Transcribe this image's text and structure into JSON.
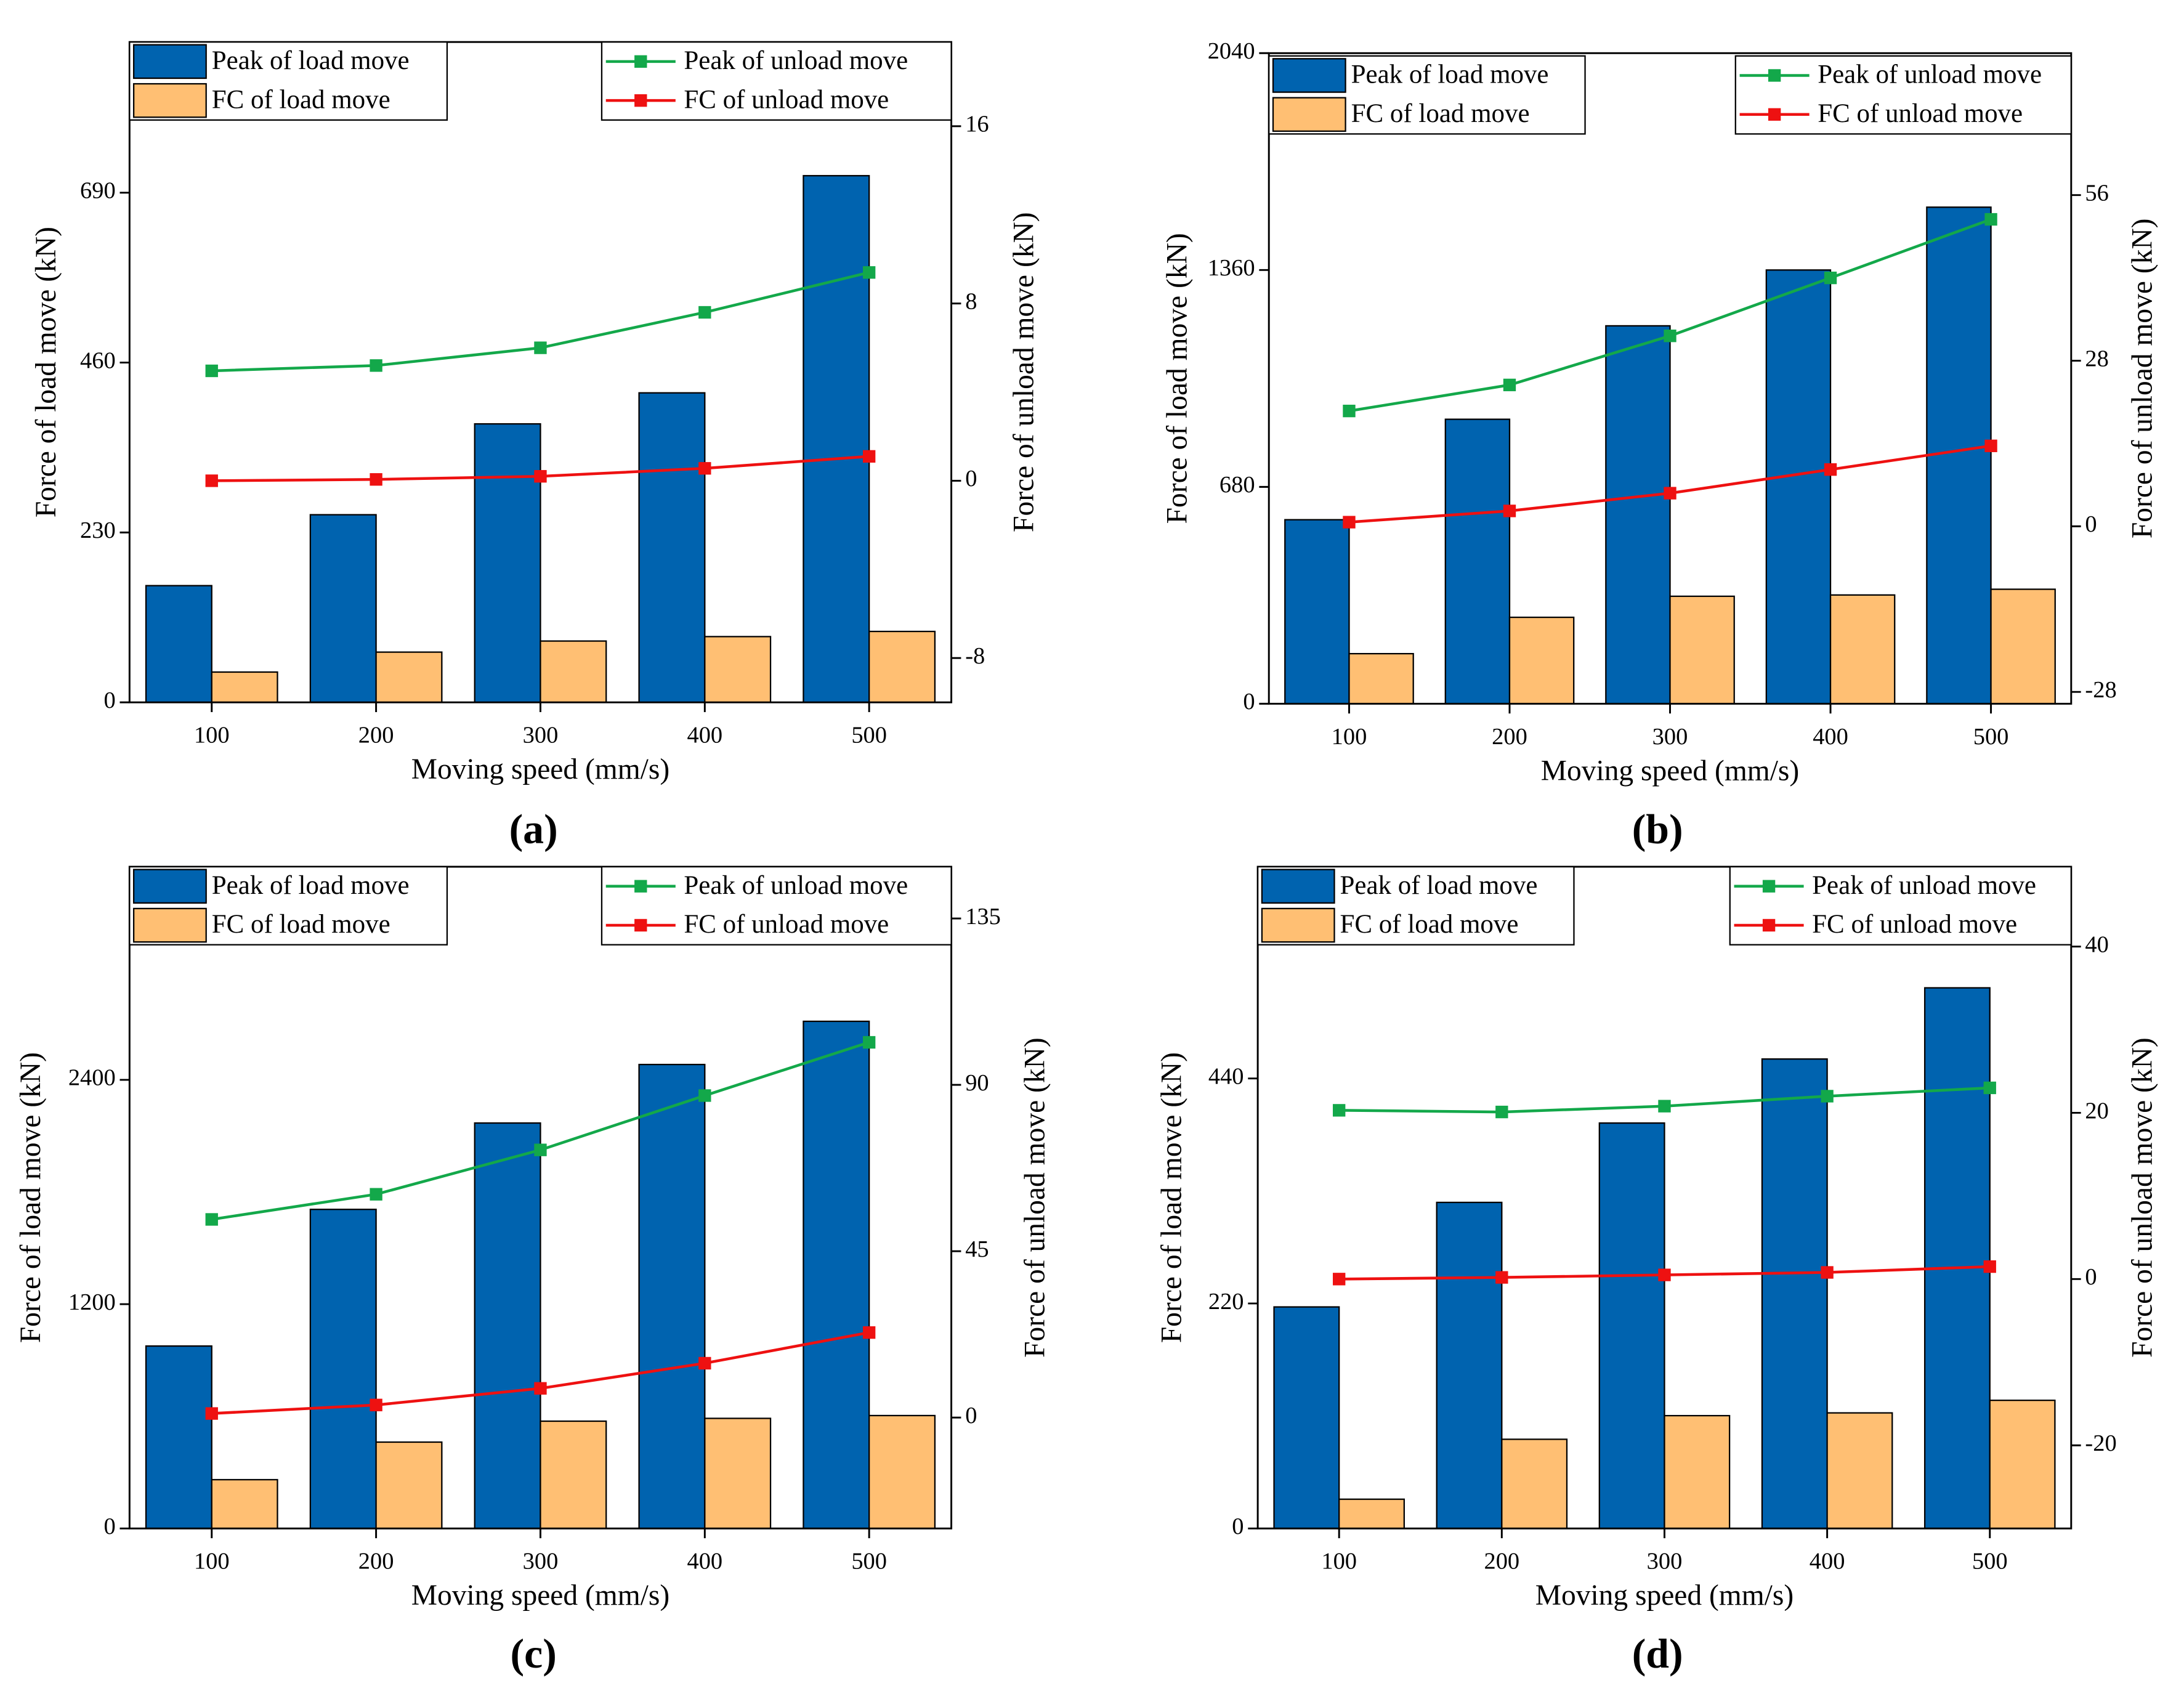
{
  "chart_data": [
    {
      "type": "bar",
      "caption": "(a)",
      "x_label": "Moving speed (mm/s)",
      "y_label": "Force of load move (kN)",
      "y2_label": "Force of unload move (kN)",
      "categories": [
        "100",
        "200",
        "300",
        "400",
        "500"
      ],
      "ylim": [
        0,
        894
      ],
      "yticks": [
        0,
        230,
        460,
        690
      ],
      "y2lim": [
        -10,
        19.8
      ],
      "y2ticks": [
        -8,
        0,
        8,
        16
      ],
      "series": [
        {
          "name": "Peak of load move",
          "type": "bar",
          "color": "#0063af",
          "values": [
            158,
            254,
            377,
            419,
            713
          ]
        },
        {
          "name": "FC of load move",
          "type": "bar",
          "color": "#ffbf73",
          "values": [
            41,
            68,
            83,
            89,
            96
          ]
        },
        {
          "name": "Peak of unload move",
          "type": "line",
          "axis": "y2",
          "color": "#13a84a",
          "values": [
            4.96,
            5.2,
            6.0,
            7.6,
            9.4
          ]
        },
        {
          "name": "FC of unload move",
          "type": "line",
          "axis": "y2",
          "color": "#ee1111",
          "values": [
            0,
            0.06,
            0.2,
            0.56,
            1.1
          ]
        }
      ]
    },
    {
      "type": "bar",
      "caption": "(b)",
      "x_label": "Moving speed (mm/s)",
      "y_label": "Force of load move (kN)",
      "y2_label": "Force of unload move (kN)",
      "categories": [
        "100",
        "200",
        "300",
        "400",
        "500"
      ],
      "ylim": [
        0,
        2040
      ],
      "yticks": [
        0,
        680,
        1360,
        2040
      ],
      "y2lim": [
        -30,
        80
      ],
      "y2ticks": [
        -28,
        0,
        28,
        56
      ],
      "series": [
        {
          "name": "Peak of load move",
          "type": "bar",
          "color": "#0063af",
          "values": [
            577,
            892,
            1185,
            1360,
            1557
          ]
        },
        {
          "name": "FC of load move",
          "type": "bar",
          "color": "#ffbf73",
          "values": [
            157,
            271,
            337,
            341,
            359
          ]
        },
        {
          "name": "Peak of unload move",
          "type": "line",
          "axis": "y2",
          "color": "#13a84a",
          "values": [
            19.5,
            23.9,
            32.2,
            42.0,
            51.9
          ]
        },
        {
          "name": "FC of unload move",
          "type": "line",
          "axis": "y2",
          "color": "#ee1111",
          "values": [
            0.7,
            2.6,
            5.6,
            9.6,
            13.6
          ]
        }
      ]
    },
    {
      "type": "bar",
      "caption": "(c)",
      "x_label": "Moving speed (mm/s)",
      "y_label": "Force of load move (kN)",
      "y2_label": "Force of unload move (kN)",
      "categories": [
        "100",
        "200",
        "300",
        "400",
        "500"
      ],
      "ylim": [
        0,
        3540
      ],
      "yticks": [
        0,
        1200,
        2400
      ],
      "y2lim": [
        -30,
        149
      ],
      "y2ticks": [
        0,
        45,
        90,
        135
      ],
      "series": [
        {
          "name": "Peak of load move",
          "type": "bar",
          "color": "#0063af",
          "values": [
            976,
            1707,
            2169,
            2482,
            2713
          ]
        },
        {
          "name": "FC of load move",
          "type": "bar",
          "color": "#ffbf73",
          "values": [
            261,
            462,
            574,
            589,
            604
          ]
        },
        {
          "name": "Peak of unload move",
          "type": "line",
          "axis": "y2",
          "color": "#13a84a",
          "values": [
            53.6,
            60.4,
            72.4,
            87.1,
            101.5
          ]
        },
        {
          "name": "FC of unload move",
          "type": "line",
          "axis": "y2",
          "color": "#ee1111",
          "values": [
            1.1,
            3.4,
            7.9,
            14.7,
            23.0
          ]
        }
      ]
    },
    {
      "type": "bar",
      "caption": "(d)",
      "x_label": "Moving speed (mm/s)",
      "y_label": "Force of load move (kN)",
      "y2_label": "Force of unload move (kN)",
      "categories": [
        "100",
        "200",
        "300",
        "400",
        "500"
      ],
      "ylim": [
        0,
        647
      ],
      "yticks": [
        0,
        220,
        440
      ],
      "y2lim": [
        -30,
        49.6
      ],
      "y2ticks": [
        -20,
        0,
        20,
        40
      ],
      "series": [
        {
          "name": "Peak of load move",
          "type": "bar",
          "color": "#0063af",
          "values": [
            216.6,
            318.8,
            396.4,
            459,
            528.6
          ]
        },
        {
          "name": "FC of load move",
          "type": "bar",
          "color": "#ffbf73",
          "values": [
            28.6,
            87.2,
            110.3,
            113,
            125.3
          ]
        },
        {
          "name": "Peak of unload move",
          "type": "line",
          "axis": "y2",
          "color": "#13a84a",
          "values": [
            20.3,
            20.1,
            20.8,
            22.0,
            23.0
          ]
        },
        {
          "name": "FC of unload move",
          "type": "line",
          "axis": "y2",
          "color": "#ee1111",
          "values": [
            0,
            0.2,
            0.5,
            0.8,
            1.5
          ]
        }
      ]
    }
  ]
}
